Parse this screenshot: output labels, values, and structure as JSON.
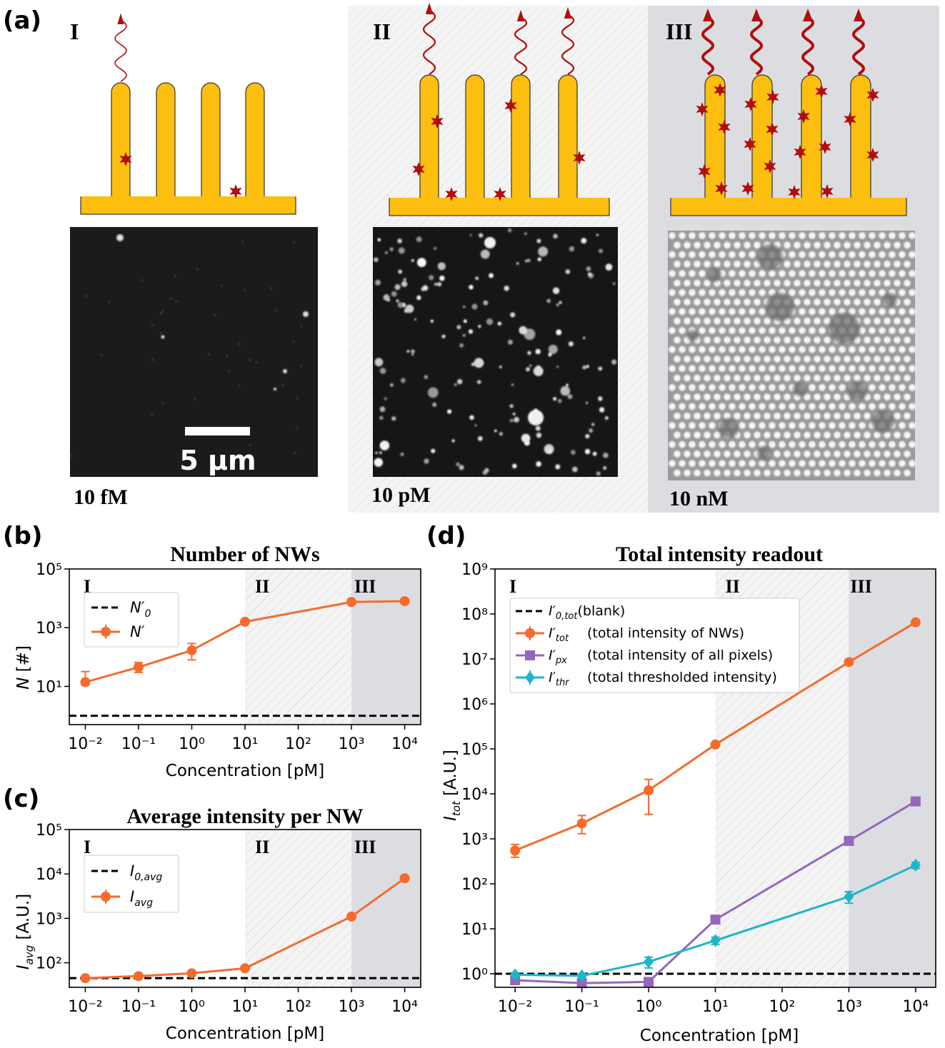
{
  "panel_a": {
    "label": "(a)",
    "regimes": [
      {
        "numeral": "I",
        "concentration": "10 fM",
        "scale_bar": "5 µm",
        "wire_labels": 2
      },
      {
        "numeral": "II",
        "concentration": "10 pM",
        "wire_labels": 6
      },
      {
        "numeral": "III",
        "concentration": "10 nM",
        "wire_labels": 20
      }
    ],
    "colors": {
      "wire": "#fcbf0f",
      "label": "#b10d0d",
      "regime2_bg": "#f3f3f3",
      "regime3_bg": "#dcdde1"
    }
  },
  "chart_data": [
    {
      "id": "b",
      "type": "line",
      "panel_label": "(b)",
      "title": "Number of NWs",
      "xlabel": "Concentration [pM]",
      "ylabel": "N [#]",
      "xscale": "log",
      "yscale": "log",
      "xlim": [
        0.005,
        20000
      ],
      "ylim": [
        0.5,
        100000
      ],
      "xticks": [
        "10⁻²",
        "10⁻¹",
        "10⁰",
        "10¹",
        "10²",
        "10³",
        "10⁴"
      ],
      "yticks": [
        "10¹",
        "10³",
        "10⁵"
      ],
      "regions": [
        "I",
        "II",
        "III"
      ],
      "legend": "top-left",
      "series": [
        {
          "name": "N′₀",
          "style": "dashed",
          "color": "#000000",
          "baseline": 1
        },
        {
          "name": "N′",
          "style": "solid-marker",
          "marker": "circle",
          "color": "#f46b2c",
          "x": [
            0.01,
            0.1,
            1,
            10,
            1000,
            10000
          ],
          "y": [
            14,
            45,
            170,
            1600,
            7500,
            8000
          ],
          "err": [
            [
              3,
              18
            ],
            [
              15,
              20
            ],
            [
              90,
              120
            ],
            [
              120,
              150
            ],
            [
              400,
              400
            ],
            [
              400,
              400
            ]
          ]
        }
      ]
    },
    {
      "id": "c",
      "type": "line",
      "panel_label": "(c)",
      "title": "Average intensity per NW",
      "xlabel": "Concentration [pM]",
      "ylabel": "I_avg [A.U.]",
      "xscale": "log",
      "yscale": "log",
      "xlim": [
        0.005,
        20000
      ],
      "ylim": [
        28,
        100000
      ],
      "xticks": [
        "10⁻²",
        "10⁻¹",
        "10⁰",
        "10¹",
        "10²",
        "10³",
        "10⁴"
      ],
      "yticks": [
        "10²",
        "10³",
        "10⁴",
        "10⁵"
      ],
      "regions": [
        "I",
        "II",
        "III"
      ],
      "legend": "top-left",
      "series": [
        {
          "name": "I₀,avg",
          "style": "dashed",
          "color": "#000000",
          "baseline": 45
        },
        {
          "name": "I_avg",
          "style": "solid-marker",
          "marker": "circle",
          "color": "#f46b2c",
          "x": [
            0.01,
            0.1,
            1,
            10,
            1000,
            10000
          ],
          "y": [
            45,
            50,
            58,
            75,
            1100,
            8000
          ]
        }
      ]
    },
    {
      "id": "d",
      "type": "line",
      "panel_label": "(d)",
      "title": "Total intensity readout",
      "xlabel": "Concentration [pM]",
      "ylabel": "I_tot [A.U.]",
      "xscale": "log",
      "yscale": "log",
      "xlim": [
        0.005,
        20000
      ],
      "ylim": [
        0.5,
        1000000000
      ],
      "xticks": [
        "10⁻²",
        "10⁻¹",
        "10⁰",
        "10¹",
        "10²",
        "10³",
        "10⁴"
      ],
      "yticks": [
        "10⁰",
        "10¹",
        "10²",
        "10³",
        "10⁴",
        "10⁵",
        "10⁶",
        "10⁷",
        "10⁸",
        "10⁹"
      ],
      "regions": [
        "I",
        "II",
        "III"
      ],
      "legend": "top-left",
      "series": [
        {
          "name": "I′0,tot(blank)",
          "style": "dashed",
          "color": "#000000",
          "baseline": 1
        },
        {
          "name": "I′tot  (total intensity of NWs)",
          "style": "solid-marker",
          "marker": "circle",
          "color": "#f46b2c",
          "x": [
            0.01,
            0.1,
            1,
            10,
            1000,
            10000
          ],
          "y": [
            550,
            2200,
            12000,
            125000,
            8500000,
            65000000
          ],
          "err": [
            [
              160,
              200
            ],
            [
              900,
              1100
            ],
            [
              8500,
              9000
            ],
            [
              8000,
              8000
            ],
            [
              900000,
              900000
            ],
            [
              3000000,
              3000000
            ]
          ]
        },
        {
          "name": "I′px    (total intensity of all pixels)",
          "style": "solid-marker",
          "marker": "square",
          "color": "#9467bd",
          "x": [
            0.01,
            0.1,
            1,
            10,
            1000,
            10000
          ],
          "y": [
            0.72,
            0.62,
            0.66,
            16,
            900,
            6800
          ]
        },
        {
          "name": "I′thr   (total thresholded intensity)",
          "style": "solid-marker",
          "marker": "diamond",
          "color": "#1fb5c9",
          "x": [
            0.01,
            0.1,
            1,
            10,
            1000,
            10000
          ],
          "y": [
            0.95,
            0.9,
            1.85,
            5.5,
            52,
            260
          ],
          "err": [
            [
              0.1,
              0.1
            ],
            [
              0.1,
              0.1
            ],
            [
              0.5,
              0.5
            ],
            [
              1,
              1
            ],
            [
              15,
              15
            ],
            [
              40,
              40
            ]
          ]
        }
      ]
    }
  ]
}
